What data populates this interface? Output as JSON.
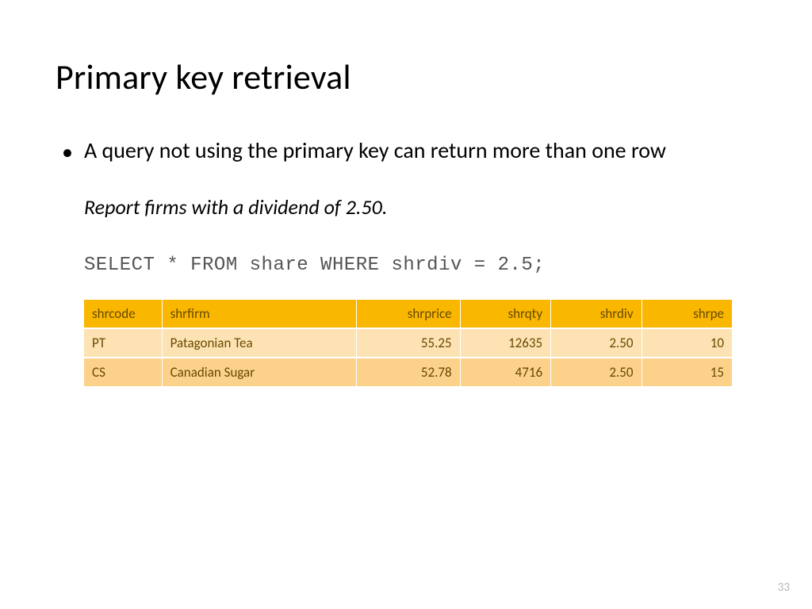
{
  "title": "Primary key retrieval",
  "bullet_text": "A query not using the primary key can return more than one row",
  "problem_text": "Report firms with a dividend of 2.50.",
  "sql_code": "SELECT * FROM share WHERE shrdiv = 2.5;",
  "page_number": "33",
  "table": {
    "header_bg": "#f9b700",
    "header_text_color": "#6a4a00",
    "row_colors": [
      "#fde3b3",
      "#fcd28a"
    ],
    "row_text_color": "#6a4a00",
    "border_color": "#ffffff",
    "columns": [
      {
        "key": "shrcode",
        "label": "shrcode",
        "align": "left",
        "width": "12%"
      },
      {
        "key": "shrfirm",
        "label": "shrfirm",
        "align": "left",
        "width": "30%"
      },
      {
        "key": "shrprice",
        "label": "shrprice",
        "align": "right",
        "width": "16%"
      },
      {
        "key": "shrqty",
        "label": "shrqty",
        "align": "right",
        "width": "14%"
      },
      {
        "key": "shrdiv",
        "label": "shrdiv",
        "align": "right",
        "width": "14%"
      },
      {
        "key": "shrpe",
        "label": "shrpe",
        "align": "right",
        "width": "14%"
      }
    ],
    "rows": [
      {
        "shrcode": "PT",
        "shrfirm": "Patagonian Tea",
        "shrprice": "55.25",
        "shrqty": "12635",
        "shrdiv": "2.50",
        "shrpe": "10"
      },
      {
        "shrcode": "CS",
        "shrfirm": "Canadian Sugar",
        "shrprice": "52.78",
        "shrqty": "4716",
        "shrdiv": "2.50",
        "shrpe": "15"
      }
    ]
  }
}
